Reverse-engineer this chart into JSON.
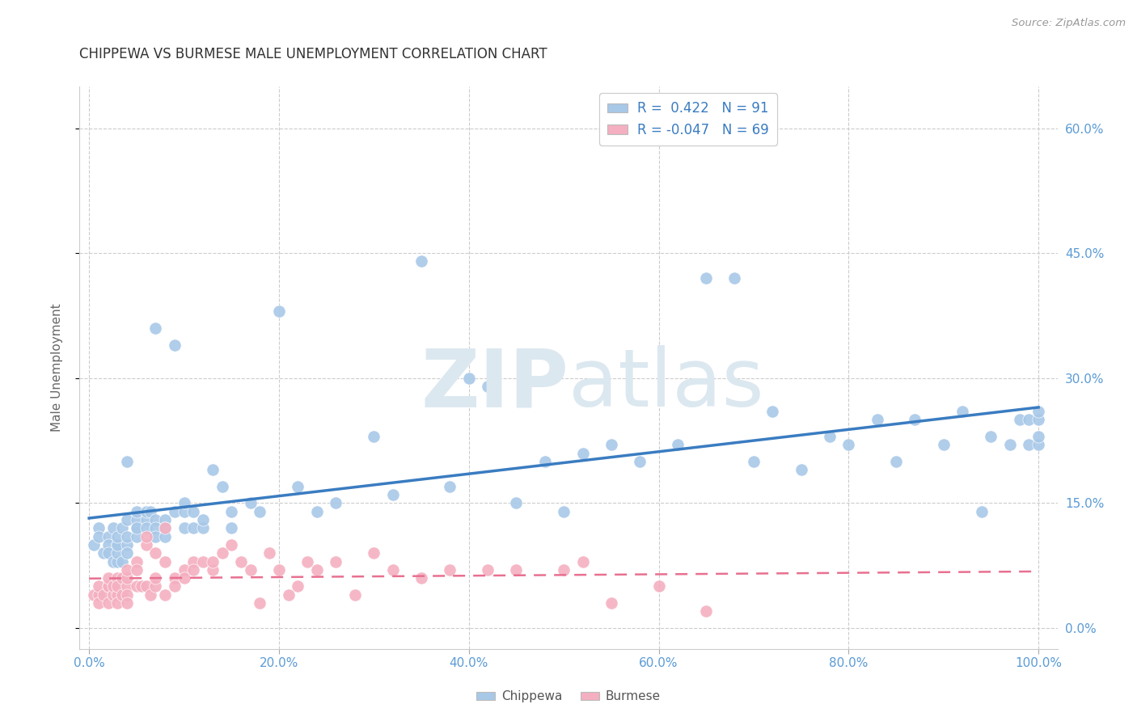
{
  "title": "CHIPPEWA VS BURMESE MALE UNEMPLOYMENT CORRELATION CHART",
  "source": "Source: ZipAtlas.com",
  "ylabel": "Male Unemployment",
  "xlabel": "",
  "xlim": [
    -0.01,
    1.02
  ],
  "ylim": [
    -0.025,
    0.65
  ],
  "xtick_vals": [
    0.0,
    0.2,
    0.4,
    0.6,
    0.8,
    1.0
  ],
  "xticklabels": [
    "0.0%",
    "20.0%",
    "40.0%",
    "60.0%",
    "80.0%",
    "100.0%"
  ],
  "ytick_vals": [
    0.0,
    0.15,
    0.3,
    0.45,
    0.6
  ],
  "ytick_labels": [
    "0.0%",
    "15.0%",
    "30.0%",
    "45.0%",
    "60.0%"
  ],
  "legend_r1": "R =  0.422   N = 91",
  "legend_r2": "R = -0.047   N = 69",
  "chippewa_color": "#a8c8e8",
  "burmese_color": "#f4afc0",
  "regression_chippewa_color": "#3a7cc1",
  "regression_burmese_color": "#e87090",
  "bg_color": "#ffffff",
  "grid_color": "#cccccc",
  "title_color": "#333333",
  "axis_color": "#5b9bd5",
  "watermark_color": "#dce8f0",
  "chippewa_x": [
    0.005,
    0.01,
    0.01,
    0.015,
    0.02,
    0.02,
    0.02,
    0.025,
    0.025,
    0.03,
    0.03,
    0.03,
    0.03,
    0.03,
    0.035,
    0.035,
    0.04,
    0.04,
    0.04,
    0.04,
    0.04,
    0.05,
    0.05,
    0.05,
    0.05,
    0.05,
    0.06,
    0.06,
    0.06,
    0.065,
    0.07,
    0.07,
    0.07,
    0.07,
    0.08,
    0.08,
    0.08,
    0.09,
    0.09,
    0.1,
    0.1,
    0.1,
    0.11,
    0.11,
    0.12,
    0.12,
    0.13,
    0.14,
    0.15,
    0.15,
    0.17,
    0.18,
    0.2,
    0.22,
    0.24,
    0.26,
    0.3,
    0.32,
    0.35,
    0.38,
    0.4,
    0.42,
    0.45,
    0.48,
    0.5,
    0.52,
    0.55,
    0.58,
    0.62,
    0.65,
    0.68,
    0.7,
    0.72,
    0.75,
    0.78,
    0.8,
    0.83,
    0.85,
    0.87,
    0.9,
    0.92,
    0.94,
    0.95,
    0.97,
    0.98,
    0.99,
    0.99,
    1.0,
    1.0,
    1.0,
    1.0
  ],
  "chippewa_y": [
    0.1,
    0.12,
    0.11,
    0.09,
    0.11,
    0.1,
    0.09,
    0.08,
    0.12,
    0.1,
    0.08,
    0.09,
    0.1,
    0.11,
    0.12,
    0.08,
    0.1,
    0.09,
    0.11,
    0.13,
    0.2,
    0.12,
    0.11,
    0.13,
    0.14,
    0.12,
    0.13,
    0.14,
    0.12,
    0.14,
    0.36,
    0.13,
    0.12,
    0.11,
    0.13,
    0.12,
    0.11,
    0.34,
    0.14,
    0.12,
    0.14,
    0.15,
    0.12,
    0.14,
    0.12,
    0.13,
    0.19,
    0.17,
    0.14,
    0.12,
    0.15,
    0.14,
    0.38,
    0.17,
    0.14,
    0.15,
    0.23,
    0.16,
    0.44,
    0.17,
    0.3,
    0.29,
    0.15,
    0.2,
    0.14,
    0.21,
    0.22,
    0.2,
    0.22,
    0.42,
    0.42,
    0.2,
    0.26,
    0.19,
    0.23,
    0.22,
    0.25,
    0.2,
    0.25,
    0.22,
    0.26,
    0.14,
    0.23,
    0.22,
    0.25,
    0.25,
    0.22,
    0.22,
    0.23,
    0.25,
    0.26
  ],
  "burmese_x": [
    0.005,
    0.01,
    0.01,
    0.01,
    0.015,
    0.02,
    0.02,
    0.02,
    0.02,
    0.025,
    0.025,
    0.03,
    0.03,
    0.03,
    0.03,
    0.035,
    0.035,
    0.04,
    0.04,
    0.04,
    0.04,
    0.04,
    0.05,
    0.05,
    0.05,
    0.055,
    0.06,
    0.06,
    0.06,
    0.065,
    0.07,
    0.07,
    0.07,
    0.08,
    0.08,
    0.08,
    0.09,
    0.09,
    0.1,
    0.1,
    0.11,
    0.11,
    0.12,
    0.13,
    0.13,
    0.14,
    0.15,
    0.16,
    0.17,
    0.18,
    0.19,
    0.2,
    0.21,
    0.22,
    0.23,
    0.24,
    0.26,
    0.28,
    0.3,
    0.32,
    0.35,
    0.38,
    0.42,
    0.45,
    0.5,
    0.52,
    0.55,
    0.6,
    0.65
  ],
  "burmese_y": [
    0.04,
    0.04,
    0.03,
    0.05,
    0.04,
    0.05,
    0.03,
    0.05,
    0.06,
    0.04,
    0.05,
    0.04,
    0.06,
    0.03,
    0.05,
    0.04,
    0.06,
    0.05,
    0.04,
    0.06,
    0.03,
    0.07,
    0.05,
    0.08,
    0.07,
    0.05,
    0.05,
    0.1,
    0.11,
    0.04,
    0.05,
    0.09,
    0.06,
    0.12,
    0.08,
    0.04,
    0.06,
    0.05,
    0.07,
    0.06,
    0.08,
    0.07,
    0.08,
    0.07,
    0.08,
    0.09,
    0.1,
    0.08,
    0.07,
    0.03,
    0.09,
    0.07,
    0.04,
    0.05,
    0.08,
    0.07,
    0.08,
    0.04,
    0.09,
    0.07,
    0.06,
    0.07,
    0.07,
    0.07,
    0.07,
    0.08,
    0.03,
    0.05,
    0.02
  ]
}
